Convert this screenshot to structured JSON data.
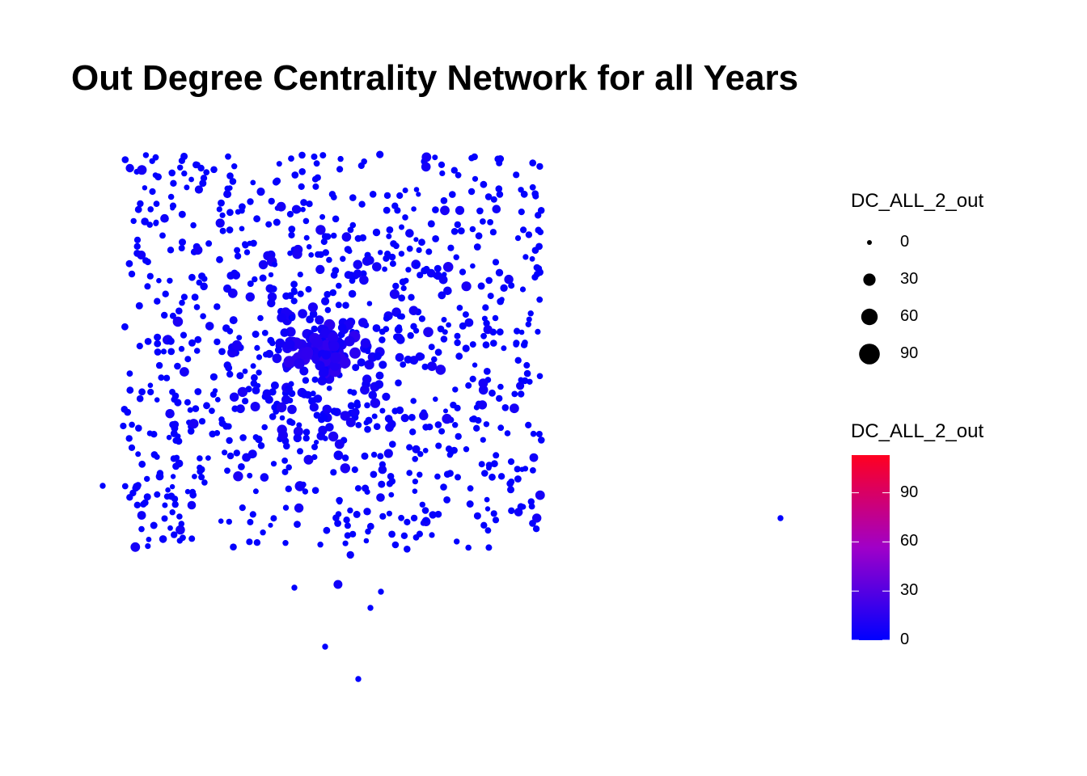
{
  "chart_data": {
    "type": "scatter",
    "title": "Out Degree Centrality Network for all Years",
    "xlabel": "",
    "ylabel": "",
    "grid": false,
    "legend_placement": "right",
    "size_legend": {
      "title": "DC_ALL_2_out",
      "breaks": [
        0,
        30,
        60,
        90
      ]
    },
    "color_legend": {
      "title": "DC_ALL_2_out",
      "breaks": [
        0,
        30,
        60,
        90
      ],
      "range": [
        0,
        113
      ],
      "low_color": "#0000FF",
      "high_color": "#FF0020"
    },
    "node_count_estimate": 1100,
    "hub_value_max": 113,
    "outlier_nodes": 6
  }
}
